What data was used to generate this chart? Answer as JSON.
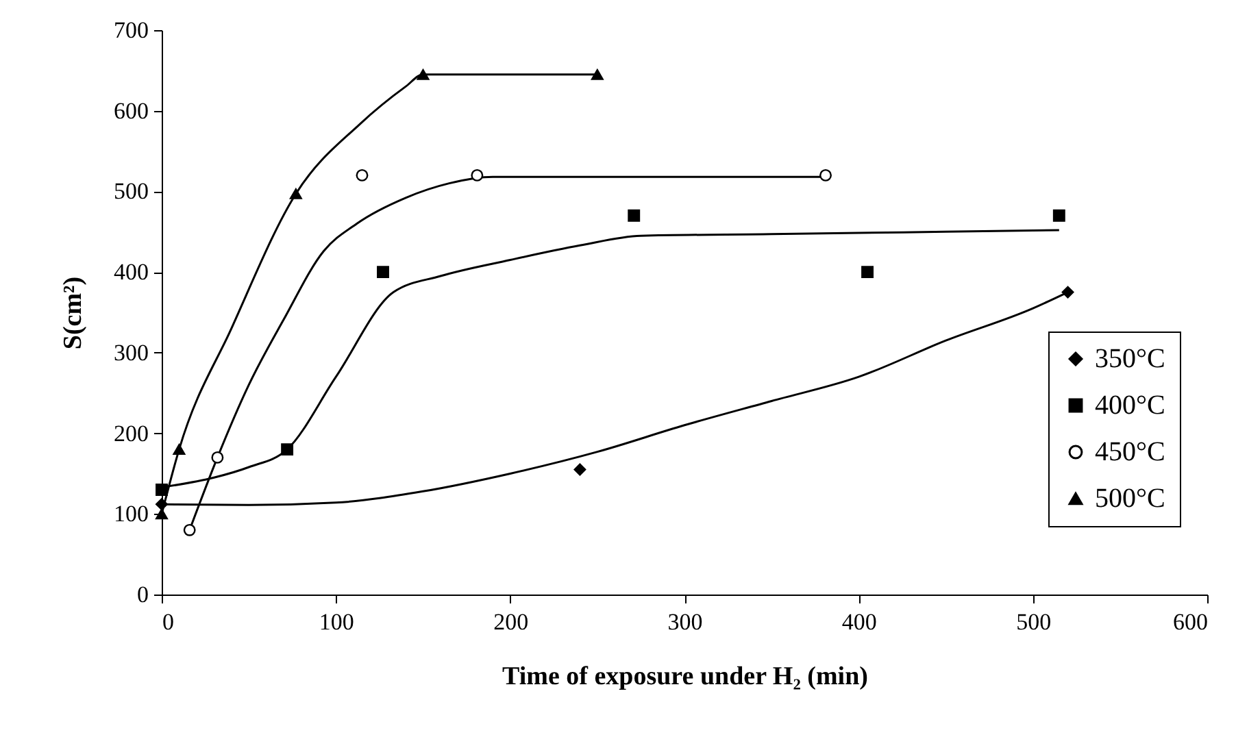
{
  "chart_data": {
    "type": "scatter",
    "xlabel": "Time of exposure under H₂ (min)",
    "ylabel": "S(cm²)",
    "xlim": [
      0,
      600
    ],
    "xticks": [
      0,
      100,
      200,
      300,
      400,
      500,
      600
    ],
    "ylim": [
      0,
      700
    ],
    "yticks": [
      0,
      100,
      200,
      300,
      400,
      500,
      600,
      700
    ],
    "legend": "bottom right",
    "series": [
      {
        "name": "350°C",
        "marker": "diamond",
        "color": "#000000",
        "x": [
          0,
          240,
          520
        ],
        "values": [
          112,
          155,
          375
        ]
      },
      {
        "name": "400°C",
        "marker": "square",
        "color": "#000000",
        "x": [
          0,
          72,
          127,
          271,
          405,
          515
        ],
        "values": [
          130,
          180,
          400,
          470,
          400,
          470
        ]
      },
      {
        "name": "450°C",
        "marker": "circle",
        "color": "#000000",
        "x": [
          16,
          32,
          115,
          181,
          381
        ],
        "values": [
          80,
          170,
          520,
          520,
          520
        ]
      },
      {
        "name": "500°C",
        "marker": "triangle",
        "color": "#000000",
        "x": [
          0,
          10,
          77,
          150,
          250
        ],
        "values": [
          100,
          180,
          497,
          645,
          645
        ]
      },
      {
        "type": "line",
        "color": "#000000",
        "x": [
          0,
          50,
          100,
          150,
          200,
          250,
          300,
          350,
          400,
          450,
          500,
          520
        ],
        "values": [
          112,
          111,
          114,
          128,
          150,
          177,
          210,
          240,
          270,
          315,
          355,
          375
        ]
      },
      {
        "type": "line",
        "color": "#000000",
        "x": [
          0,
          30,
          50,
          72,
          100,
          133,
          160,
          200,
          240,
          275,
          350,
          450,
          515
        ],
        "values": [
          133,
          145,
          158,
          180,
          270,
          375,
          395,
          415,
          433,
          445,
          447,
          450,
          452
        ]
      },
      {
        "type": "line",
        "color": "#000000",
        "x": [
          16,
          32,
          50,
          70,
          93,
          112,
          140,
          165,
          190,
          300,
          381
        ],
        "values": [
          80,
          170,
          260,
          341,
          426,
          460,
          492,
          510,
          518,
          518,
          518
        ]
      },
      {
        "type": "line",
        "color": "#000000",
        "x": [
          0,
          10,
          40,
          77,
          114,
          140,
          150,
          250
        ],
        "values": [
          100,
          180,
          330,
          497,
          584,
          630,
          645,
          645
        ]
      }
    ]
  }
}
